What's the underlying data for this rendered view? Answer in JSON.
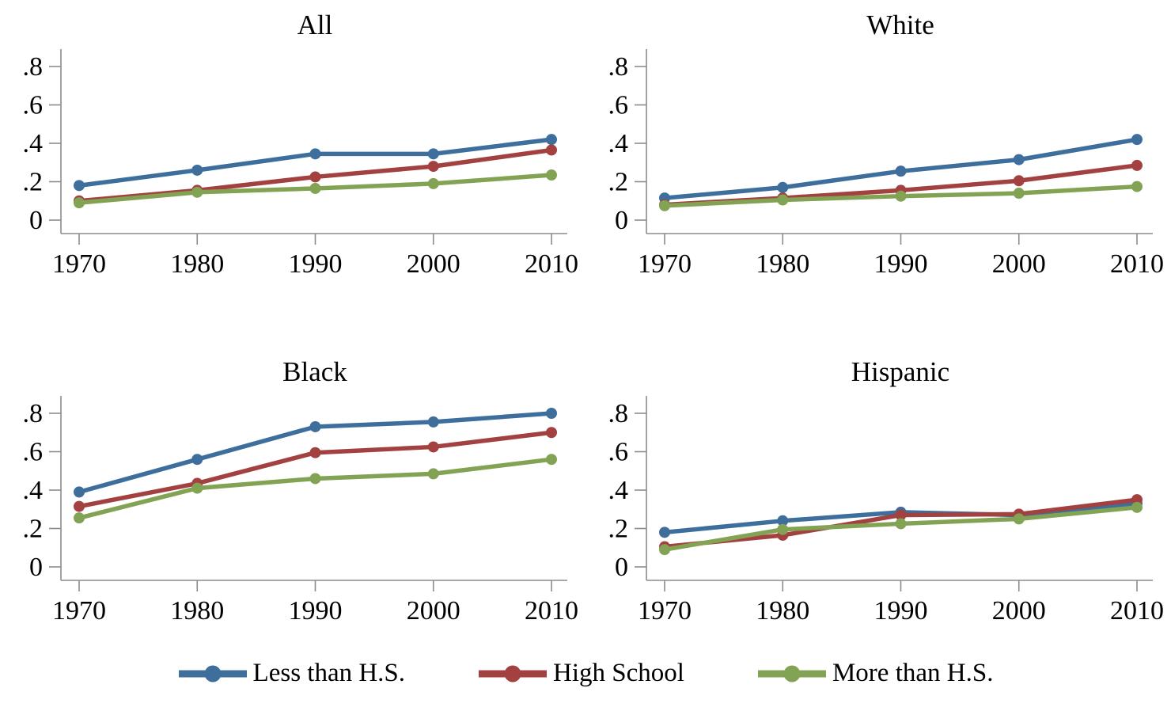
{
  "figure": {
    "background": "#ffffff",
    "axis_color": "#8c8c8c",
    "label_color": "#000000"
  },
  "legend": {
    "items": [
      {
        "label": "Less than H.S.",
        "color": "#3d6e9c"
      },
      {
        "label": "High School",
        "color": "#a34040"
      },
      {
        "label": "More than H.S.",
        "color": "#83a354"
      }
    ]
  },
  "chart_data": [
    {
      "type": "line",
      "title": "All",
      "xlabel": "",
      "ylabel": "",
      "categories": [
        "1970",
        "1980",
        "1990",
        "2000",
        "2010"
      ],
      "x_values": [
        1970,
        1980,
        1990,
        2000,
        2010
      ],
      "series": [
        {
          "name": "Less than H.S.",
          "color": "#3d6e9c",
          "values": [
            0.18,
            0.26,
            0.345,
            0.345,
            0.42
          ]
        },
        {
          "name": "High School",
          "color": "#a34040",
          "values": [
            0.1,
            0.155,
            0.225,
            0.28,
            0.365
          ]
        },
        {
          "name": "More than H.S.",
          "color": "#83a354",
          "values": [
            0.09,
            0.145,
            0.165,
            0.19,
            0.235
          ]
        }
      ],
      "ylim": [
        0,
        0.85
      ],
      "yticks": {
        "values": [
          0,
          0.2,
          0.4,
          0.6,
          0.8
        ],
        "labels": [
          "0",
          ".2",
          ".4",
          ".6",
          ".8"
        ]
      },
      "grid": false,
      "legend_position": "shared-bottom"
    },
    {
      "type": "line",
      "title": "White",
      "xlabel": "",
      "ylabel": "",
      "categories": [
        "1970",
        "1980",
        "1990",
        "2000",
        "2010"
      ],
      "x_values": [
        1970,
        1980,
        1990,
        2000,
        2010
      ],
      "series": [
        {
          "name": "Less than H.S.",
          "color": "#3d6e9c",
          "values": [
            0.115,
            0.17,
            0.255,
            0.315,
            0.42
          ]
        },
        {
          "name": "High School",
          "color": "#a34040",
          "values": [
            0.08,
            0.115,
            0.155,
            0.205,
            0.285
          ]
        },
        {
          "name": "More than H.S.",
          "color": "#83a354",
          "values": [
            0.075,
            0.105,
            0.125,
            0.14,
            0.175
          ]
        }
      ],
      "ylim": [
        0,
        0.85
      ],
      "yticks": {
        "values": [
          0,
          0.2,
          0.4,
          0.6,
          0.8
        ],
        "labels": [
          "0",
          ".2",
          ".4",
          ".6",
          ".8"
        ]
      },
      "grid": false,
      "legend_position": "shared-bottom"
    },
    {
      "type": "line",
      "title": "Black",
      "xlabel": "",
      "ylabel": "",
      "categories": [
        "1970",
        "1980",
        "1990",
        "2000",
        "2010"
      ],
      "x_values": [
        1970,
        1980,
        1990,
        2000,
        2010
      ],
      "series": [
        {
          "name": "Less than H.S.",
          "color": "#3d6e9c",
          "values": [
            0.39,
            0.56,
            0.73,
            0.755,
            0.8
          ]
        },
        {
          "name": "High School",
          "color": "#a34040",
          "values": [
            0.315,
            0.435,
            0.595,
            0.625,
            0.7
          ]
        },
        {
          "name": "More than H.S.",
          "color": "#83a354",
          "values": [
            0.255,
            0.41,
            0.46,
            0.485,
            0.56
          ]
        }
      ],
      "ylim": [
        0,
        0.85
      ],
      "yticks": {
        "values": [
          0,
          0.2,
          0.4,
          0.6,
          0.8
        ],
        "labels": [
          "0",
          ".2",
          ".4",
          ".6",
          ".8"
        ]
      },
      "grid": false,
      "legend_position": "shared-bottom"
    },
    {
      "type": "line",
      "title": "Hispanic",
      "xlabel": "",
      "ylabel": "",
      "categories": [
        "1970",
        "1980",
        "1990",
        "2000",
        "2010"
      ],
      "x_values": [
        1970,
        1980,
        1990,
        2000,
        2010
      ],
      "series": [
        {
          "name": "Less than H.S.",
          "color": "#3d6e9c",
          "values": [
            0.18,
            0.24,
            0.285,
            0.27,
            0.33
          ]
        },
        {
          "name": "High School",
          "color": "#a34040",
          "values": [
            0.105,
            0.165,
            0.27,
            0.275,
            0.35
          ]
        },
        {
          "name": "More than H.S.",
          "color": "#83a354",
          "values": [
            0.09,
            0.195,
            0.225,
            0.25,
            0.31
          ]
        }
      ],
      "ylim": [
        0,
        0.85
      ],
      "yticks": {
        "values": [
          0,
          0.2,
          0.4,
          0.6,
          0.8
        ],
        "labels": [
          "0",
          ".2",
          ".4",
          ".6",
          ".8"
        ]
      },
      "grid": false,
      "legend_position": "shared-bottom"
    }
  ]
}
